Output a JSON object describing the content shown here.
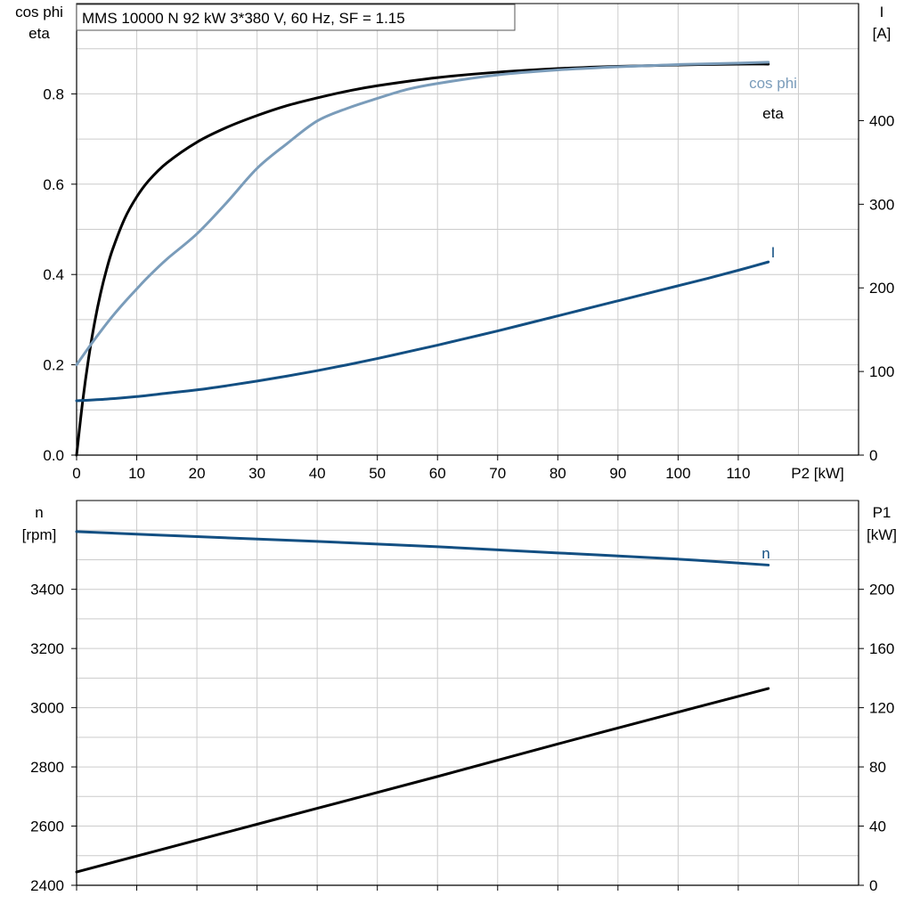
{
  "chart_data": [
    {
      "type": "line",
      "title": "MMS 10000 N   92 kW   3*380 V, 60 Hz, SF = 1.15",
      "xlabel": "P2 [kW]",
      "xlim": [
        0,
        130
      ],
      "xticks": [
        0,
        10,
        20,
        30,
        40,
        50,
        60,
        70,
        80,
        90,
        100,
        110
      ],
      "ylabel_left": [
        "cos phi",
        "eta"
      ],
      "ylim_left": [
        0,
        1.0
      ],
      "yticks_left": [
        0.0,
        0.2,
        0.4,
        0.6,
        0.8
      ],
      "ylabel_right": [
        "I",
        "[A]"
      ],
      "ylim_right": [
        0,
        540
      ],
      "yticks_right": [
        0,
        100,
        200,
        300,
        400
      ],
      "grid": true,
      "series": [
        {
          "name": "eta",
          "axis": "left",
          "color": "#000000",
          "x": [
            0,
            1,
            2,
            3,
            4,
            5,
            6,
            8,
            10,
            12,
            15,
            20,
            25,
            30,
            35,
            40,
            45,
            50,
            60,
            70,
            80,
            90,
            100,
            110,
            115
          ],
          "y": [
            0.0,
            0.118,
            0.215,
            0.294,
            0.359,
            0.412,
            0.456,
            0.524,
            0.572,
            0.608,
            0.647,
            0.693,
            0.726,
            0.752,
            0.774,
            0.791,
            0.806,
            0.818,
            0.836,
            0.848,
            0.856,
            0.861,
            0.864,
            0.866,
            0.866
          ]
        },
        {
          "name": "cos phi",
          "axis": "left",
          "color": "#7a9cba",
          "x": [
            0,
            2,
            4,
            6,
            8,
            10,
            12,
            15,
            20,
            25,
            30,
            35,
            40,
            45,
            50,
            55,
            60,
            70,
            80,
            90,
            100,
            110,
            115
          ],
          "y": [
            0.2,
            0.238,
            0.274,
            0.308,
            0.339,
            0.368,
            0.396,
            0.434,
            0.49,
            0.56,
            0.635,
            0.69,
            0.74,
            0.768,
            0.79,
            0.81,
            0.823,
            0.842,
            0.853,
            0.86,
            0.865,
            0.868,
            0.87
          ]
        },
        {
          "name": "I",
          "axis": "right",
          "color": "#134f82",
          "x": [
            0,
            5,
            10,
            15,
            20,
            25,
            30,
            35,
            40,
            45,
            50,
            55,
            60,
            65,
            70,
            75,
            80,
            85,
            90,
            95,
            100,
            105,
            110,
            115
          ],
          "y": [
            65.0,
            67.0,
            70.0,
            74.0,
            78.0,
            83.0,
            88.5,
            94.5,
            101.0,
            108.0,
            115.5,
            123.5,
            131.5,
            140.0,
            148.5,
            157.5,
            166.5,
            175.5,
            184.5,
            193.5,
            202.5,
            211.5,
            221.0,
            231.0
          ]
        }
      ]
    },
    {
      "type": "line",
      "xlim": [
        0,
        130
      ],
      "xticks": [
        0,
        10,
        20,
        30,
        40,
        50,
        60,
        70,
        80,
        90,
        100,
        110
      ],
      "ylabel_left": [
        "n",
        "[rpm]"
      ],
      "ylim_left": [
        2400,
        3700
      ],
      "yticks_left": [
        2400,
        2600,
        2800,
        3000,
        3200,
        3400
      ],
      "ylabel_right": [
        "P1",
        "[kW]"
      ],
      "ylim_right": [
        0,
        260
      ],
      "yticks_right": [
        0,
        40,
        80,
        120,
        160,
        200
      ],
      "grid": true,
      "series": [
        {
          "name": "n",
          "axis": "left",
          "color": "#134f82",
          "x": [
            0,
            20,
            40,
            60,
            80,
            100,
            115
          ],
          "y": [
            3595,
            3578,
            3562,
            3544,
            3523,
            3502,
            3482
          ]
        },
        {
          "name": "",
          "axis": "right",
          "color": "#000000",
          "x": [
            0,
            20,
            40,
            60,
            80,
            100,
            115
          ],
          "y": [
            9,
            30.5,
            52,
            73.5,
            95.5,
            117,
            133
          ]
        }
      ]
    }
  ]
}
